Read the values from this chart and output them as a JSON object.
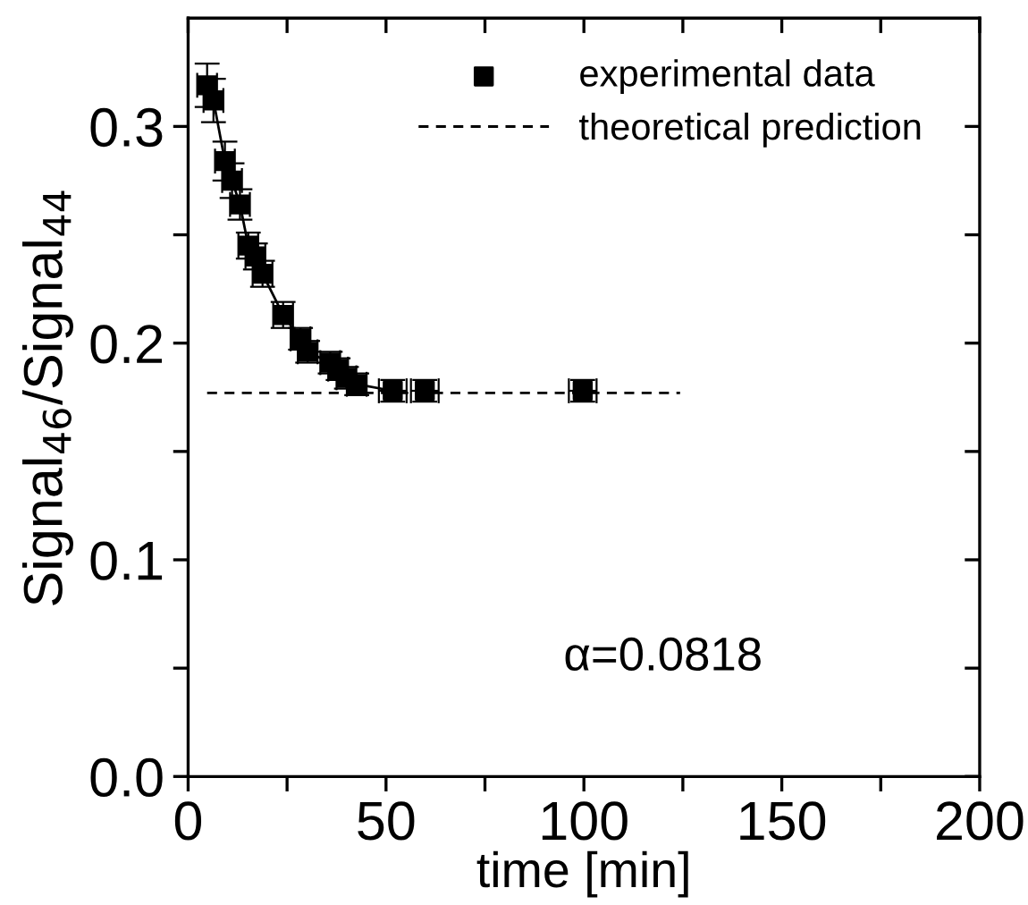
{
  "chart_data": {
    "type": "scatter",
    "xlabel": "time [min]",
    "ylabel": "Signal$_{46}$/Signal$_{44}$",
    "xlim": [
      0,
      200
    ],
    "xticks": [
      0,
      {
        "value": 25,
        "label": null
      },
      50,
      {
        "value": 75,
        "label": null
      },
      100,
      {
        "value": 125,
        "label": null
      },
      150,
      {
        "value": 175,
        "label": null
      },
      200
    ],
    "ylim": [
      0,
      0.35
    ],
    "yticks": [
      "0.0",
      {
        "value": 0.05,
        "label": null
      },
      0.1,
      {
        "value": 0.15,
        "label": null
      },
      0.2,
      {
        "value": 0.25,
        "label": null
      },
      0.3
    ],
    "legend": "top right",
    "grid": false,
    "annotations": [
      "α=0.0818"
    ],
    "series": [
      {
        "type": "line",
        "color": "#000000",
        "line_style": "solid",
        "marker": "none",
        "x": [
          4.8,
          6.4,
          9.3,
          11.1,
          13.1,
          15.2,
          17.0,
          18.8,
          24.0,
          28.4,
          30.2,
          35.9,
          37.9,
          40.0,
          42.6,
          51.7
        ],
        "values": [
          0.319,
          0.312,
          0.284,
          0.275,
          0.264,
          0.245,
          0.24,
          0.232,
          0.213,
          0.202,
          0.196,
          0.191,
          0.188,
          0.184,
          0.181,
          0.178
        ]
      },
      {
        "name": "experimental data",
        "color": "#000000",
        "marker": "square",
        "x": [
          4.8,
          6.4,
          9.3,
          11.1,
          13.1,
          15.2,
          17.0,
          18.8,
          24.0,
          28.4,
          30.2,
          35.9,
          37.9,
          40.0,
          42.6,
          51.7,
          59.8,
          99.7
        ],
        "values": [
          0.319,
          0.312,
          0.284,
          0.275,
          0.264,
          0.245,
          0.24,
          0.232,
          0.213,
          0.202,
          0.196,
          0.191,
          0.188,
          0.184,
          0.181,
          0.178,
          0.178,
          0.178
        ],
        "errors": [
          0.01,
          0.01,
          0.009,
          0.008,
          0.007,
          0.006,
          0.006,
          0.006,
          0.006,
          0.005,
          0.005,
          0.005,
          0.005,
          0.005,
          0.005,
          0.005,
          0.005,
          0.005
        ],
        "xerrors": [
          2.5,
          2.5,
          2.5,
          2.5,
          2.5,
          2.5,
          2.5,
          2.5,
          2.5,
          2.5,
          2.5,
          2.5,
          2.5,
          2.5,
          2.5,
          3.5,
          3.5,
          3.5
        ]
      },
      {
        "type": "line",
        "name": "theoretical prediction",
        "color": "#000000",
        "line_style": "dashed",
        "marker": "none",
        "x": [
          4.8,
          124.3
        ],
        "values": [
          0.177,
          0.177
        ]
      }
    ]
  }
}
